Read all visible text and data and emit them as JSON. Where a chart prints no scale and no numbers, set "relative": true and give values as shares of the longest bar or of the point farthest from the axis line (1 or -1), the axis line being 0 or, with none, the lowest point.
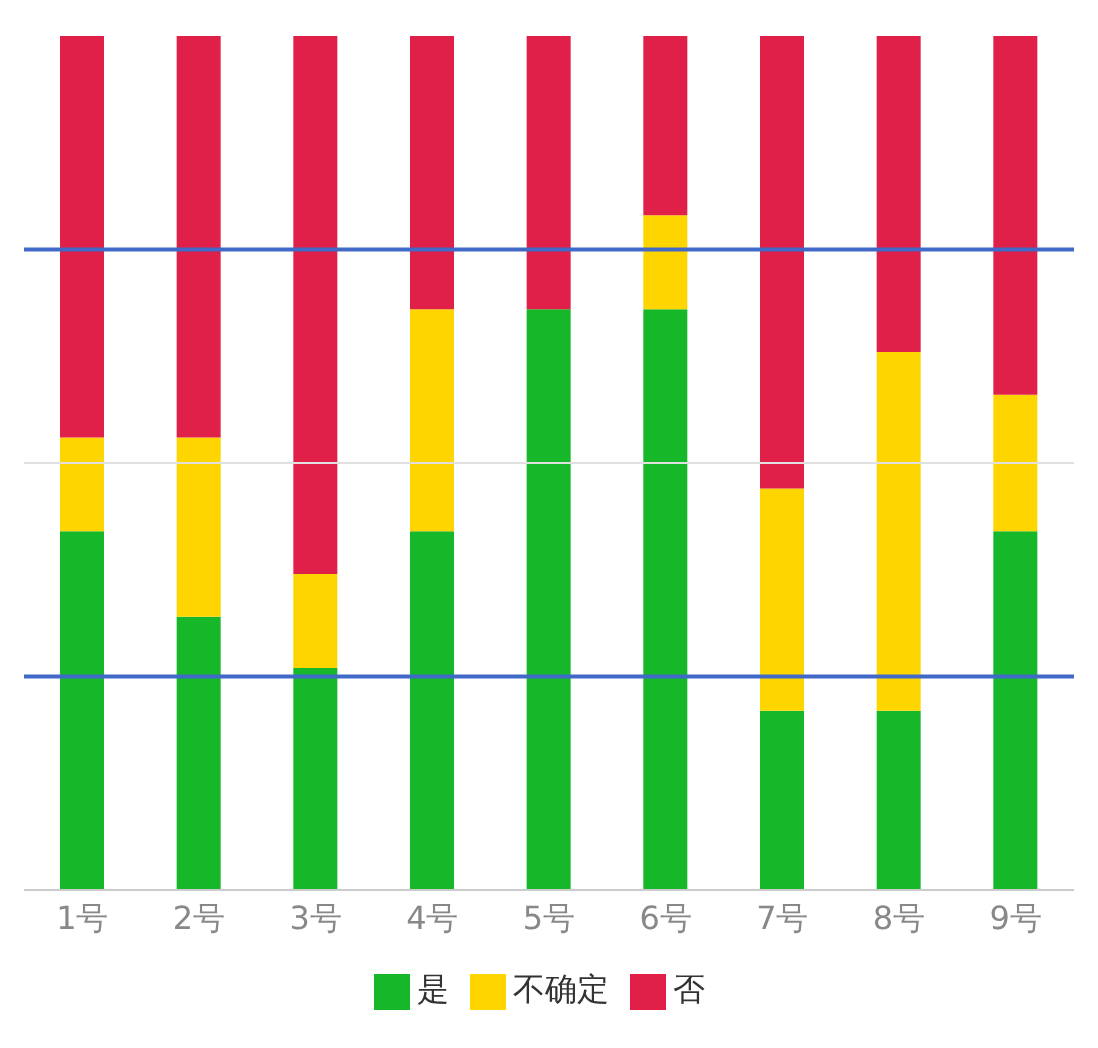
{
  "chart_data": {
    "type": "bar",
    "stacked": true,
    "relative": true,
    "categories": [
      "1号",
      "2号",
      "3号",
      "4号",
      "5号",
      "6号",
      "7号",
      "8号",
      "9号"
    ],
    "series": [
      {
        "name": "是",
        "color": "#16b82a",
        "values": [
          0.42,
          0.32,
          0.26,
          0.42,
          0.68,
          0.68,
          0.21,
          0.21,
          0.42
        ]
      },
      {
        "name": "不确定",
        "color": "#ffd500",
        "values": [
          0.11,
          0.21,
          0.11,
          0.26,
          0,
          0.11,
          0.26,
          0.42,
          0.16
        ]
      },
      {
        "name": "否",
        "color": "#e02048",
        "values": [
          0.47,
          0.47,
          0.63,
          0.32,
          0.32,
          0.21,
          0.53,
          0.37,
          0.42
        ]
      }
    ],
    "ref_lines": [
      {
        "axis": "y",
        "value": 0.5,
        "color": "#e0e0e0"
      },
      {
        "axis": "y",
        "value": 0.75,
        "color": "#4169c8"
      },
      {
        "axis": "y",
        "value": 0.25,
        "color": "#4169c8"
      }
    ],
    "legend": "bottom"
  }
}
